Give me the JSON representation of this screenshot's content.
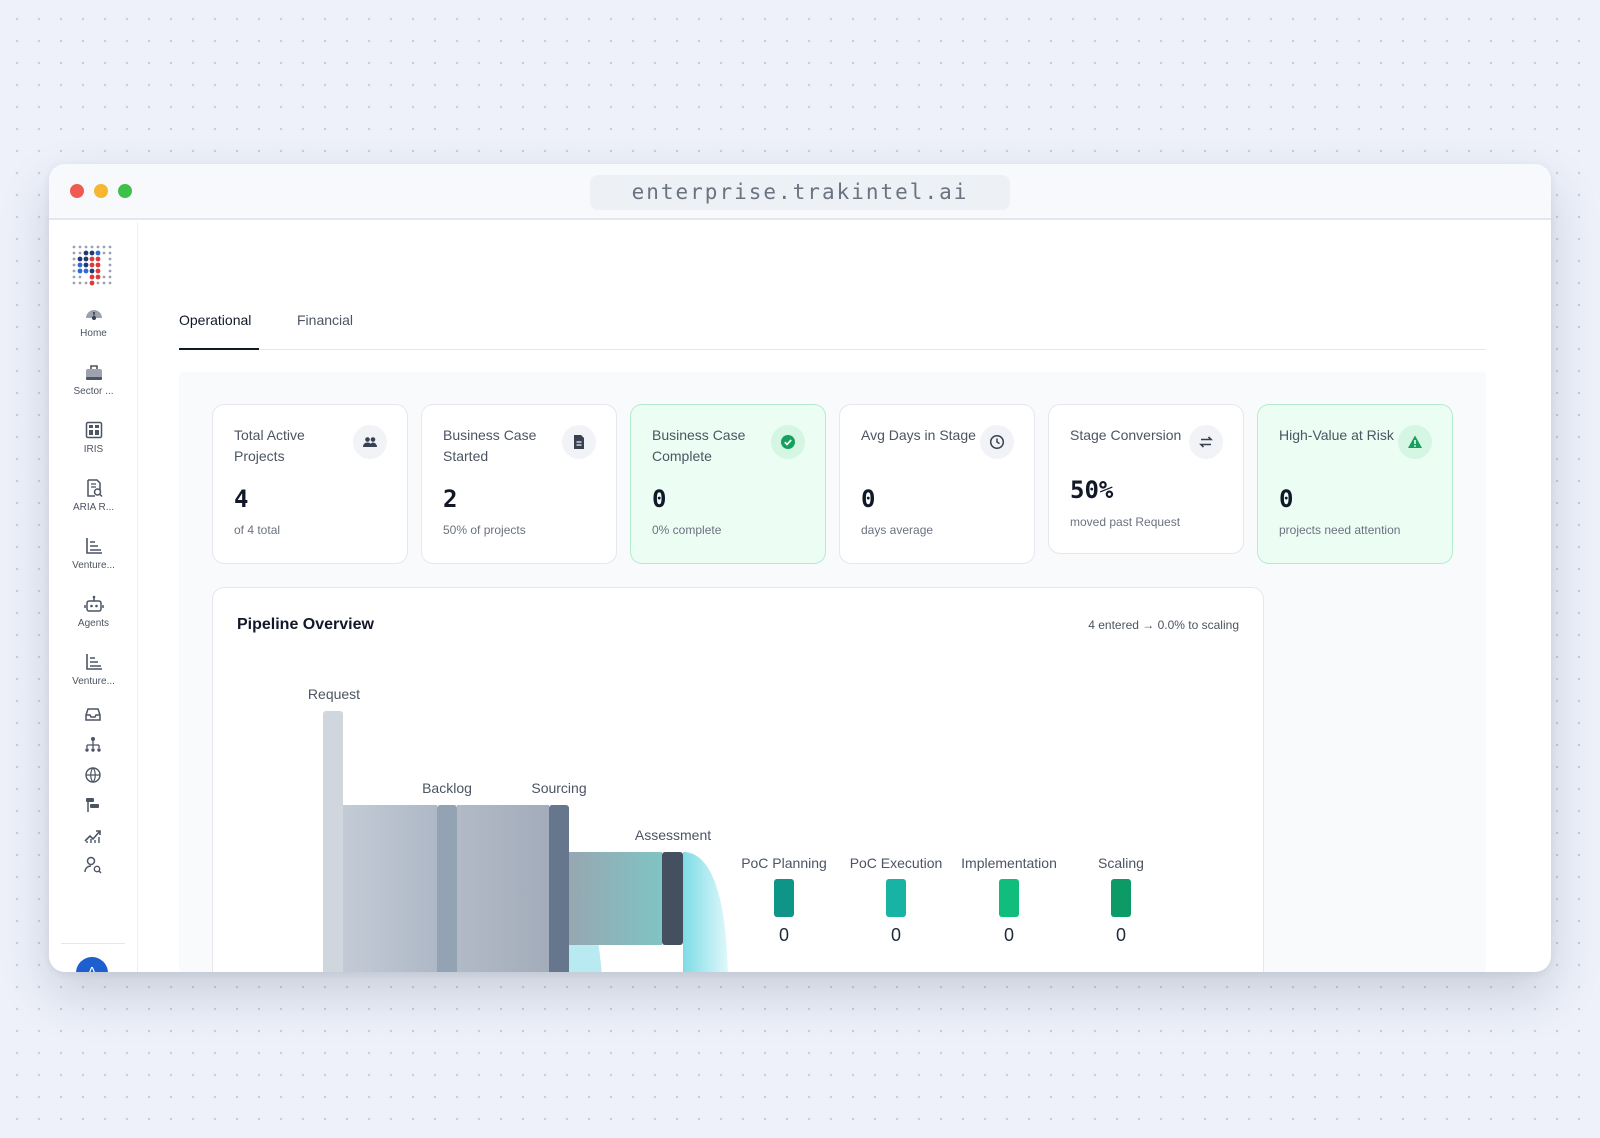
{
  "browser": {
    "url": "enterprise.trakintel.ai"
  },
  "sidebar": {
    "items": [
      {
        "label": "Home",
        "icon": "gauge-icon"
      },
      {
        "label": "Sector ...",
        "icon": "briefcase-icon"
      },
      {
        "label": "IRIS",
        "icon": "dashboard-icon"
      },
      {
        "label": "ARIA R...",
        "icon": "document-search-icon"
      },
      {
        "label": "Venture...",
        "icon": "bar-chart-icon"
      },
      {
        "label": "Agents",
        "icon": "robot-icon"
      },
      {
        "label": "Venture...",
        "icon": "bar-chart-icon"
      }
    ],
    "mini_icons": [
      "inbox-icon",
      "org-chart-icon",
      "globe-icon",
      "roadmap-icon",
      "trend-icon",
      "user-search-icon"
    ],
    "avatar_initial": "A"
  },
  "tabs": [
    {
      "label": "Operational",
      "active": true
    },
    {
      "label": "Financial",
      "active": false
    }
  ],
  "kpi_cards": [
    {
      "title": "Total Active Projects",
      "value": "4",
      "sub": "of 4 total",
      "icon": "users-icon",
      "highlight": false
    },
    {
      "title": "Business Case Started",
      "value": "2",
      "sub": "50% of projects",
      "icon": "document-icon",
      "highlight": false
    },
    {
      "title": "Business Case Complete",
      "value": "0",
      "sub": "0% complete",
      "icon": "check-circle-icon",
      "highlight": true
    },
    {
      "title": "Avg Days in Stage",
      "value": "0",
      "sub": "days average",
      "icon": "clock-icon",
      "highlight": false
    },
    {
      "title": "Stage Conversion",
      "value": "50%",
      "sub": "moved past Request",
      "icon": "swap-icon",
      "highlight": false
    },
    {
      "title": "High-Value at Risk",
      "value": "0",
      "sub": "projects need attention",
      "icon": "warning-icon",
      "highlight": true
    }
  ],
  "pipeline": {
    "title": "Pipeline Overview",
    "summary": "4 entered → 0.0% to scaling",
    "flow_stages": [
      "Request",
      "Backlog",
      "Sourcing",
      "Assessment"
    ],
    "count_stages": [
      {
        "label": "PoC Planning",
        "count": "0",
        "color": "#0f9488"
      },
      {
        "label": "PoC Execution",
        "count": "0",
        "color": "#17b3a3"
      },
      {
        "label": "Implementation",
        "count": "0",
        "color": "#10bd7c"
      },
      {
        "label": "Scaling",
        "count": "0",
        "color": "#0c9a66"
      }
    ]
  },
  "colors": {
    "accent": "#1d5fcf",
    "success_bg": "#ecfdf3",
    "success": "#16a05d"
  }
}
